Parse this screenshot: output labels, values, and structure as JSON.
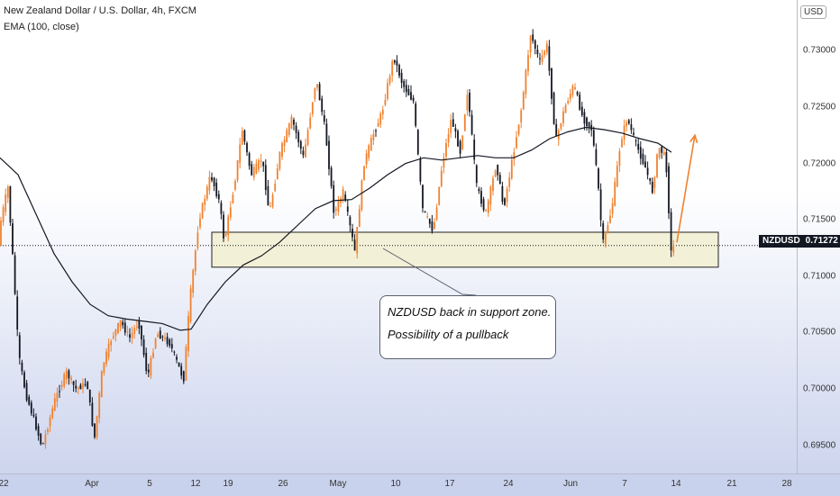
{
  "legend": {
    "symbol_line": "New Zealand Dollar / U.S. Dollar, 4h, FXCM",
    "indicator_line": "EMA (100, close)"
  },
  "currency_button": "USD",
  "price_tag": {
    "symbol": "NZDUSD",
    "price": "0.71272"
  },
  "callout": {
    "line1": "NZDUSD back in support zone.",
    "line2": "Possibility of a pullback"
  },
  "colors": {
    "up": "#f0822f",
    "down": "#131722",
    "ema": "#131722",
    "zone": "#f2f0d6",
    "arrow": "#f0822f"
  },
  "chart_data": {
    "type": "candlestick",
    "title": "New Zealand Dollar / U.S. Dollar, 4h, FXCM",
    "indicator": "EMA (100, close)",
    "y_tick_labels": [
      "0.69500",
      "0.70000",
      "0.70500",
      "0.71000",
      "0.71500",
      "0.72000",
      "0.72500",
      "0.73000"
    ],
    "x_tick_labels": [
      "22",
      "Apr",
      "5",
      "12",
      "19",
      "26",
      "May",
      "10",
      "17",
      "24",
      "Jun",
      "7",
      "14",
      "21",
      "28"
    ],
    "ylim": [
      0.6925,
      0.7345
    ],
    "last_price": 0.71272,
    "support_zone": {
      "from": 0.7108,
      "to": 0.7139
    },
    "price_path": [
      {
        "x": 0,
        "y": 0.714
      },
      {
        "x": 10,
        "y": 0.718
      },
      {
        "x": 16,
        "y": 0.711
      },
      {
        "x": 22,
        "y": 0.703
      },
      {
        "x": 30,
        "y": 0.6995
      },
      {
        "x": 40,
        "y": 0.697
      },
      {
        "x": 48,
        "y": 0.6948
      },
      {
        "x": 62,
        "y": 0.699
      },
      {
        "x": 75,
        "y": 0.7015
      },
      {
        "x": 85,
        "y": 0.7
      },
      {
        "x": 98,
        "y": 0.7005
      },
      {
        "x": 106,
        "y": 0.6955
      },
      {
        "x": 115,
        "y": 0.702
      },
      {
        "x": 125,
        "y": 0.7045
      },
      {
        "x": 135,
        "y": 0.706
      },
      {
        "x": 145,
        "y": 0.7045
      },
      {
        "x": 155,
        "y": 0.706
      },
      {
        "x": 165,
        "y": 0.701
      },
      {
        "x": 175,
        "y": 0.705
      },
      {
        "x": 190,
        "y": 0.704
      },
      {
        "x": 205,
        "y": 0.7008
      },
      {
        "x": 212,
        "y": 0.708
      },
      {
        "x": 222,
        "y": 0.715
      },
      {
        "x": 235,
        "y": 0.719
      },
      {
        "x": 245,
        "y": 0.7165
      },
      {
        "x": 250,
        "y": 0.713
      },
      {
        "x": 262,
        "y": 0.7185
      },
      {
        "x": 270,
        "y": 0.723
      },
      {
        "x": 280,
        "y": 0.719
      },
      {
        "x": 292,
        "y": 0.7205
      },
      {
        "x": 300,
        "y": 0.7155
      },
      {
        "x": 312,
        "y": 0.721
      },
      {
        "x": 325,
        "y": 0.724
      },
      {
        "x": 338,
        "y": 0.7205
      },
      {
        "x": 352,
        "y": 0.7275
      },
      {
        "x": 362,
        "y": 0.723
      },
      {
        "x": 372,
        "y": 0.7155
      },
      {
        "x": 382,
        "y": 0.7175
      },
      {
        "x": 395,
        "y": 0.7122
      },
      {
        "x": 405,
        "y": 0.72
      },
      {
        "x": 415,
        "y": 0.7225
      },
      {
        "x": 425,
        "y": 0.7245
      },
      {
        "x": 438,
        "y": 0.7295
      },
      {
        "x": 448,
        "y": 0.727
      },
      {
        "x": 460,
        "y": 0.7255
      },
      {
        "x": 470,
        "y": 0.716
      },
      {
        "x": 482,
        "y": 0.714
      },
      {
        "x": 492,
        "y": 0.72
      },
      {
        "x": 502,
        "y": 0.724
      },
      {
        "x": 512,
        "y": 0.721
      },
      {
        "x": 520,
        "y": 0.7265
      },
      {
        "x": 530,
        "y": 0.718
      },
      {
        "x": 540,
        "y": 0.7155
      },
      {
        "x": 552,
        "y": 0.72
      },
      {
        "x": 560,
        "y": 0.716
      },
      {
        "x": 570,
        "y": 0.7205
      },
      {
        "x": 580,
        "y": 0.725
      },
      {
        "x": 590,
        "y": 0.7315
      },
      {
        "x": 600,
        "y": 0.729
      },
      {
        "x": 608,
        "y": 0.7305
      },
      {
        "x": 618,
        "y": 0.722
      },
      {
        "x": 628,
        "y": 0.725
      },
      {
        "x": 638,
        "y": 0.727
      },
      {
        "x": 648,
        "y": 0.724
      },
      {
        "x": 658,
        "y": 0.723
      },
      {
        "x": 665,
        "y": 0.718
      },
      {
        "x": 670,
        "y": 0.7128
      },
      {
        "x": 680,
        "y": 0.716
      },
      {
        "x": 690,
        "y": 0.722
      },
      {
        "x": 697,
        "y": 0.724
      },
      {
        "x": 708,
        "y": 0.7215
      },
      {
        "x": 718,
        "y": 0.7195
      },
      {
        "x": 725,
        "y": 0.7175
      },
      {
        "x": 732,
        "y": 0.7215
      },
      {
        "x": 740,
        "y": 0.7205
      },
      {
        "x": 746,
        "y": 0.712
      },
      {
        "x": 749,
        "y": 0.71272
      }
    ],
    "ema_path": [
      {
        "x": 0,
        "y": 0.7205
      },
      {
        "x": 20,
        "y": 0.719
      },
      {
        "x": 40,
        "y": 0.7155
      },
      {
        "x": 60,
        "y": 0.712
      },
      {
        "x": 80,
        "y": 0.7095
      },
      {
        "x": 100,
        "y": 0.7075
      },
      {
        "x": 120,
        "y": 0.7065
      },
      {
        "x": 140,
        "y": 0.7062
      },
      {
        "x": 160,
        "y": 0.706
      },
      {
        "x": 180,
        "y": 0.7058
      },
      {
        "x": 200,
        "y": 0.7052
      },
      {
        "x": 212,
        "y": 0.7053
      },
      {
        "x": 230,
        "y": 0.7075
      },
      {
        "x": 250,
        "y": 0.7095
      },
      {
        "x": 270,
        "y": 0.711
      },
      {
        "x": 290,
        "y": 0.7118
      },
      {
        "x": 310,
        "y": 0.713
      },
      {
        "x": 330,
        "y": 0.7145
      },
      {
        "x": 350,
        "y": 0.716
      },
      {
        "x": 370,
        "y": 0.7167
      },
      {
        "x": 390,
        "y": 0.7168
      },
      {
        "x": 410,
        "y": 0.7178
      },
      {
        "x": 430,
        "y": 0.719
      },
      {
        "x": 450,
        "y": 0.72
      },
      {
        "x": 470,
        "y": 0.7205
      },
      {
        "x": 490,
        "y": 0.7203
      },
      {
        "x": 510,
        "y": 0.7205
      },
      {
        "x": 530,
        "y": 0.7207
      },
      {
        "x": 550,
        "y": 0.7205
      },
      {
        "x": 570,
        "y": 0.7205
      },
      {
        "x": 590,
        "y": 0.7212
      },
      {
        "x": 610,
        "y": 0.7222
      },
      {
        "x": 630,
        "y": 0.7228
      },
      {
        "x": 650,
        "y": 0.7232
      },
      {
        "x": 670,
        "y": 0.723
      },
      {
        "x": 690,
        "y": 0.7227
      },
      {
        "x": 710,
        "y": 0.7222
      },
      {
        "x": 730,
        "y": 0.7218
      },
      {
        "x": 745,
        "y": 0.721
      }
    ],
    "forecast_arrow": {
      "from": {
        "x": 751,
        "y": 0.713
      },
      "to": {
        "x": 771,
        "y": 0.7225
      }
    }
  }
}
